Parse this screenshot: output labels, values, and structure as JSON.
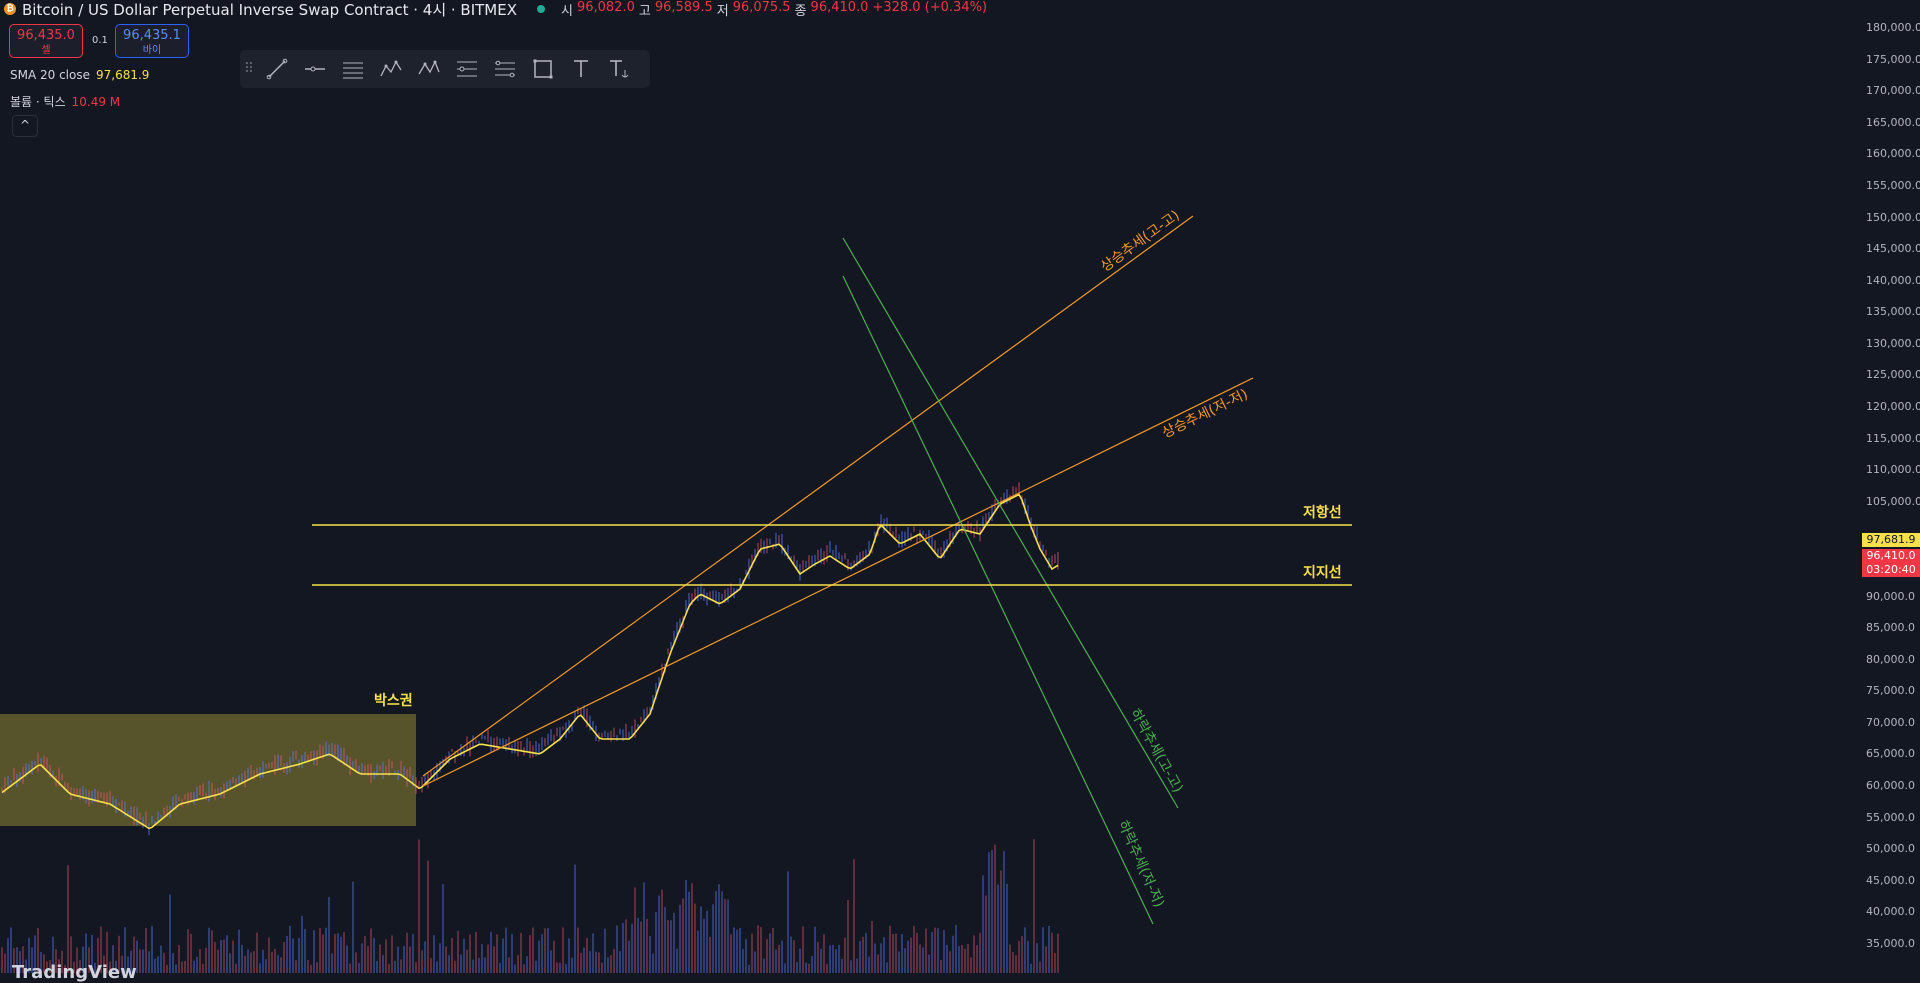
{
  "header": {
    "coin_icon": "bitcoin-icon",
    "title": "Bitcoin / US Dollar Perpetual Inverse Swap Contract · 4시 · BITMEX",
    "ohlc": [
      {
        "label": "시",
        "value": "96,082.0"
      },
      {
        "label": "고",
        "value": "96,589.5"
      },
      {
        "label": "저",
        "value": "96,075.5"
      },
      {
        "label": "종",
        "value": "96,410.0"
      }
    ],
    "change": "+328.0 (+0.34%)",
    "status_color": "#22ab94"
  },
  "trade": {
    "sell_price": "96,435.0",
    "sell_label": "셀",
    "spread": "0.1",
    "buy_price": "96,435.1",
    "buy_label": "바이"
  },
  "indicators": {
    "sma_label": "SMA 20 close",
    "sma_value": "97,681.9",
    "vol_label": "볼륨 · 틱스",
    "vol_value": "10.49 M",
    "collapse_icon": "chevron-up-icon"
  },
  "toolbar": {
    "handle_icon": "drag-handle-icon",
    "tools": [
      "trend-line-icon",
      "horizontal-ray-icon",
      "parallel-channel-icon",
      "xabcd-pattern-icon",
      "abcd-pattern-icon",
      "fib-retracement-icon",
      "gann-fan-icon",
      "rectangle-icon",
      "text-icon",
      "anchored-text-icon"
    ]
  },
  "price_axis": {
    "ticks": [
      "180,000.0",
      "175,000.0",
      "170,000.0",
      "165,000.0",
      "160,000.0",
      "155,000.0",
      "150,000.0",
      "145,000.0",
      "140,000.0",
      "135,000.0",
      "130,000.0",
      "125,000.0",
      "120,000.0",
      "115,000.0",
      "110,000.0",
      "105,000.0",
      "97,681.9",
      "96,410.0",
      "90,000.0",
      "85,000.0",
      "80,000.0",
      "75,000.0",
      "70,000.0",
      "65,000.0",
      "60,000.0",
      "55,000.0",
      "50,000.0",
      "45,000.0",
      "40,000.0",
      "35,000.0"
    ],
    "sma_tag": "97,681.9",
    "price_tag": "96,410.0",
    "countdown": "03:20:40",
    "sma_color": "#f7e049",
    "price_color": "#f23645"
  },
  "annotations": {
    "box_label": "박스권",
    "resistance": "저항선",
    "support": "지지선",
    "uptrend_high": "상승추세(고-고)",
    "uptrend_low": "상승추세(저-저)",
    "downtrend_high": "하락추세(고-고)",
    "downtrend_low": "하락추세(저-저)",
    "yellow": "#f7e049",
    "orange": "#f59a23",
    "green": "#4caf50"
  },
  "footer": {
    "logo": "TradingView"
  }
}
